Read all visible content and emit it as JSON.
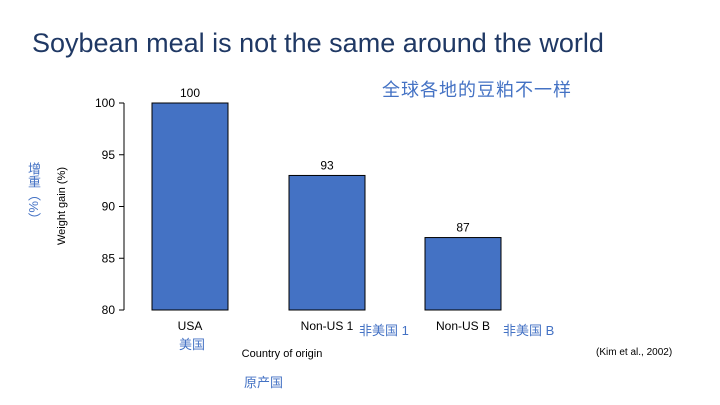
{
  "slide": {
    "title": "Soybean meal is not the same around the world",
    "subtitle_zh": "全球各地的豆粕不一样",
    "ylabel_zh": "增重（%）",
    "xlabel_zh": "原产国",
    "category_labels_zh": [
      "美国",
      "非美国 1",
      "非美国 B"
    ],
    "citation": "(Kim et al., 2002)"
  },
  "colors": {
    "bar": "#4472c4",
    "title": "#1f3864",
    "annotation": "#4472c4"
  },
  "chart_data": {
    "type": "bar",
    "title": "",
    "xlabel": "Country of origin",
    "ylabel": "Weight gain (%)",
    "categories": [
      "USA",
      "Non-US 1",
      "Non-US B"
    ],
    "values": [
      100,
      93,
      87
    ],
    "data_labels": [
      "100",
      "93",
      "87"
    ],
    "ylim": [
      80,
      100
    ],
    "yticks": [
      80,
      85,
      90,
      95,
      100
    ],
    "grid": false,
    "legend": "none"
  }
}
